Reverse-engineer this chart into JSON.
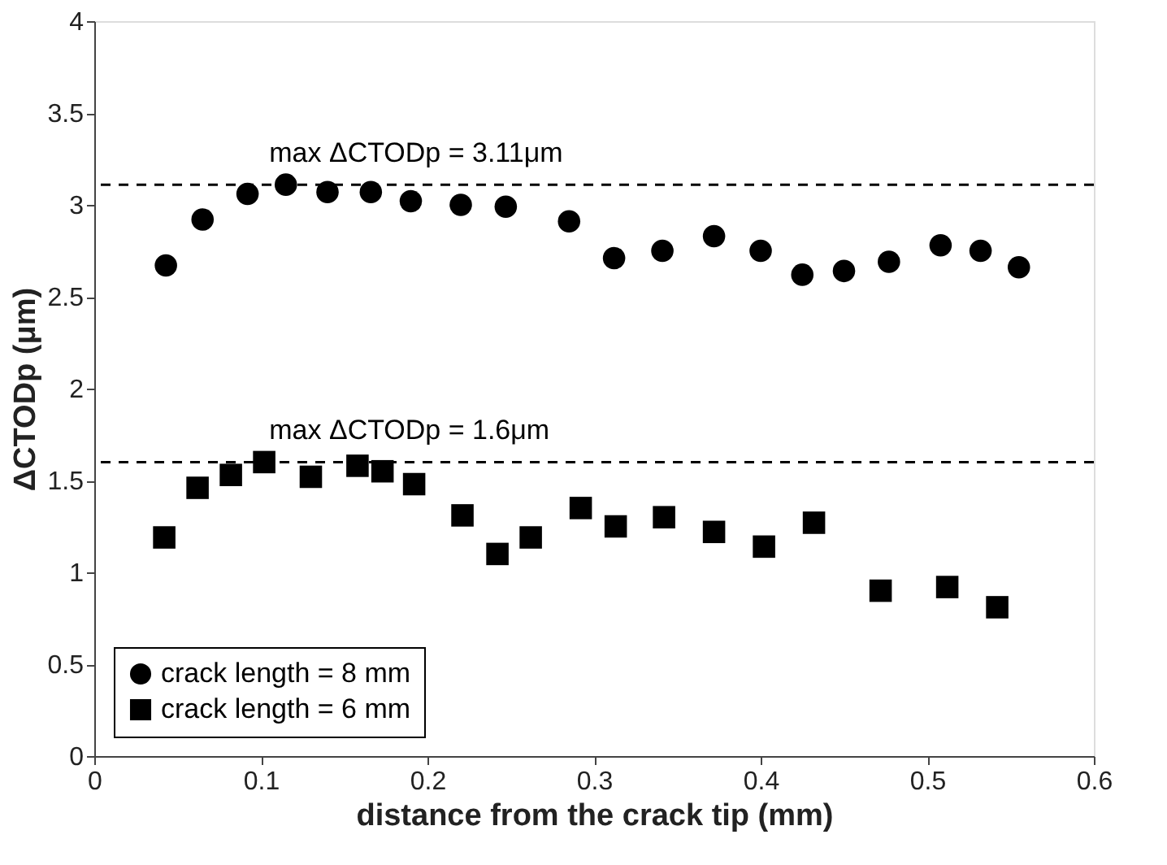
{
  "chart_data": {
    "type": "scatter",
    "xlabel": "distance from the crack tip (mm)",
    "ylabel": "ΔCTODp (μm)",
    "xlim": [
      0,
      0.6
    ],
    "xticks": [
      0,
      0.1,
      0.2,
      0.3,
      0.4,
      0.5,
      0.6
    ],
    "ylim": [
      0,
      4
    ],
    "yticks": [
      0,
      0.5,
      1,
      1.5,
      2,
      2.5,
      3,
      3.5,
      4
    ],
    "grid": false,
    "legend": "bottom left",
    "series": [
      {
        "name": "crack length = 8 mm",
        "color": "#000000",
        "marker": "circle",
        "x": [
          0.043,
          0.065,
          0.092,
          0.115,
          0.14,
          0.166,
          0.19,
          0.22,
          0.247,
          0.285,
          0.312,
          0.341,
          0.372,
          0.4,
          0.425,
          0.45,
          0.477,
          0.508,
          0.532,
          0.555
        ],
        "values": [
          2.67,
          2.92,
          3.06,
          3.11,
          3.07,
          3.07,
          3.02,
          3.0,
          2.99,
          2.91,
          2.71,
          2.75,
          2.83,
          2.75,
          2.62,
          2.64,
          2.69,
          2.78,
          2.75,
          2.66
        ]
      },
      {
        "name": "crack length = 6 mm",
        "color": "#000000",
        "marker": "square",
        "x": [
          0.042,
          0.062,
          0.082,
          0.102,
          0.13,
          0.158,
          0.173,
          0.192,
          0.221,
          0.242,
          0.262,
          0.292,
          0.313,
          0.342,
          0.372,
          0.402,
          0.432,
          0.472,
          0.512,
          0.542
        ],
        "values": [
          1.19,
          1.46,
          1.53,
          1.6,
          1.52,
          1.58,
          1.55,
          1.48,
          1.31,
          1.1,
          1.19,
          1.35,
          1.25,
          1.3,
          1.22,
          1.14,
          1.27,
          0.9,
          0.92,
          0.81
        ]
      }
    ],
    "ref_lines": [
      {
        "axis": "y",
        "value": 3.11,
        "label": "max ΔCTODp = 3.11μm",
        "color": "#000000",
        "line_style": "dashed"
      },
      {
        "axis": "y",
        "value": 1.6,
        "label": "max ΔCTODp = 1.6μm",
        "color": "#000000",
        "line_style": "dashed"
      }
    ]
  }
}
